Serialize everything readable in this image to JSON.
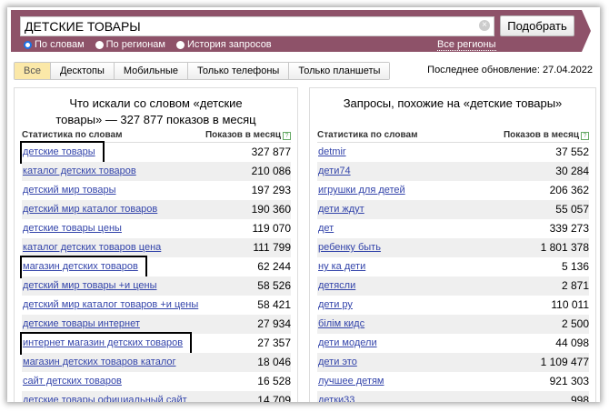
{
  "search": {
    "value": "ДЕТСКИЕ ТОВАРЫ",
    "button": "Подобрать",
    "modes": [
      "По словам",
      "По регионам",
      "История запросов"
    ],
    "selected_mode": "По словам",
    "regions": "Все регионы"
  },
  "tabs": [
    "Все",
    "Десктопы",
    "Мобильные",
    "Только телефоны",
    "Только планшеты"
  ],
  "active_tab": "Все",
  "updated": "Последнее обновление: 27.04.2022",
  "left": {
    "title_1": "Что искали со словом «детские",
    "title_2": "товары» — 327 877 показов в месяц",
    "col_phrase": "Статистика по словам",
    "col_count": "Показов в месяц",
    "rows": [
      {
        "phrase": "детские товары",
        "count": "327 877",
        "highlighted": true
      },
      {
        "phrase": "каталог детских товаров",
        "count": "210 086"
      },
      {
        "phrase": "детский мир товары",
        "count": "197 293"
      },
      {
        "phrase": "детский мир каталог товаров",
        "count": "190 360"
      },
      {
        "phrase": "детские товары цены",
        "count": "119 070"
      },
      {
        "phrase": "каталог детских товаров цена",
        "count": "111 799"
      },
      {
        "phrase": "магазин детских товаров",
        "count": "62 244",
        "highlighted": true
      },
      {
        "phrase": "детский мир товары +и цены",
        "count": "58 526"
      },
      {
        "phrase": "детский мир каталог товаров +и цены",
        "count": "58 421"
      },
      {
        "phrase": "детские товары интернет",
        "count": "27 934"
      },
      {
        "phrase": "интернет магазин детских товаров",
        "count": "27 357",
        "highlighted": true
      },
      {
        "phrase": "магазин детских товаров каталог",
        "count": "18 046"
      },
      {
        "phrase": "сайт детских товаров",
        "count": "16 528"
      },
      {
        "phrase": "детские товары официальный сайт",
        "count": "14 709"
      }
    ]
  },
  "right": {
    "title": "Запросы, похожие на «детские товары»",
    "col_phrase": "Статистика по словам",
    "col_count": "Показов в месяц",
    "rows": [
      {
        "phrase": "detmir",
        "count": "37 552"
      },
      {
        "phrase": "дети74",
        "count": "30 284"
      },
      {
        "phrase": "игрушки для детей",
        "count": "206 362"
      },
      {
        "phrase": "дети ждут",
        "count": "55 057"
      },
      {
        "phrase": "дет",
        "count": "339 273"
      },
      {
        "phrase": "ребенку быть",
        "count": "1 801 378"
      },
      {
        "phrase": "ну ка дети",
        "count": "5 136"
      },
      {
        "phrase": "детясли",
        "count": "2 871"
      },
      {
        "phrase": "дети ру",
        "count": "110 011"
      },
      {
        "phrase": "білім кидс",
        "count": "2 500"
      },
      {
        "phrase": "дети модели",
        "count": "44 098"
      },
      {
        "phrase": "дети это",
        "count": "1 109 477"
      },
      {
        "phrase": "лучшее детям",
        "count": "921 303"
      },
      {
        "phrase": "детки33",
        "count": "998"
      }
    ]
  },
  "colors": {
    "header_bar": "#8e5269",
    "link": "#3344aa",
    "active_tab": "#fbe8a8"
  }
}
